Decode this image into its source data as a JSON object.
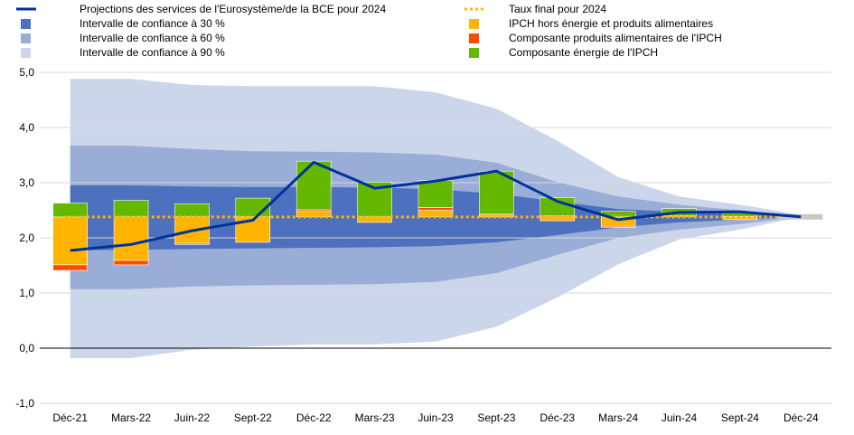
{
  "chart_data": {
    "type": "bar",
    "title": "",
    "xlabel": "",
    "ylabel": "",
    "ylim": [
      -1.0,
      5.0
    ],
    "yticks": [
      "-1,0",
      "0,0",
      "1,0",
      "2,0",
      "3,0",
      "4,0",
      "5,0"
    ],
    "grid": true,
    "legend_position": "top",
    "categories": [
      "Déc-21",
      "Mars-22",
      "Juin-22",
      "Sept-22",
      "Déc-22",
      "Mars-23",
      "Juin-23",
      "Sept-23",
      "Déc-23",
      "Mars-24",
      "Juin-24",
      "Sept-24",
      "Déc-24"
    ],
    "projection_line": {
      "name": "Projections des services de l'Eurosystème/de la BCE pour 2024",
      "color": "#003299",
      "values": [
        1.77,
        1.88,
        2.13,
        2.32,
        3.37,
        2.9,
        3.03,
        3.21,
        2.66,
        2.33,
        2.46,
        2.47,
        2.38
      ]
    },
    "final_rate": {
      "name": "Taux final pour 2024",
      "color": "#FFB400",
      "value": 2.38
    },
    "confidence_bands": [
      {
        "name": "Intervalle de confiance à 90 %",
        "color": "#CCD6EB",
        "upper": [
          4.88,
          4.88,
          4.77,
          4.75,
          4.75,
          4.75,
          4.64,
          4.34,
          3.76,
          3.1,
          2.75,
          2.6,
          2.42
        ],
        "lower": [
          -0.18,
          -0.18,
          -0.03,
          0.03,
          0.07,
          0.07,
          0.12,
          0.39,
          0.92,
          1.52,
          1.97,
          2.15,
          2.38
        ]
      },
      {
        "name": "Intervalle de confiance à 60 %",
        "color": "#99ADD6",
        "upper": [
          3.67,
          3.67,
          3.61,
          3.57,
          3.56,
          3.55,
          3.51,
          3.36,
          3.01,
          2.75,
          2.6,
          2.5,
          2.4
        ],
        "lower": [
          1.07,
          1.07,
          1.12,
          1.14,
          1.15,
          1.16,
          1.2,
          1.36,
          1.69,
          2.0,
          2.15,
          2.25,
          2.38
        ]
      },
      {
        "name": "Intervalle de confiance à 30 %",
        "color": "#4D70BF",
        "upper": [
          2.95,
          2.95,
          2.93,
          2.92,
          2.92,
          2.91,
          2.88,
          2.8,
          2.66,
          2.52,
          2.47,
          2.44,
          2.4
        ],
        "lower": [
          1.78,
          1.78,
          1.8,
          1.81,
          1.82,
          1.83,
          1.85,
          1.92,
          2.05,
          2.19,
          2.28,
          2.33,
          2.38
        ]
      }
    ],
    "error_components": {
      "baseline": 2.38,
      "series": [
        {
          "name": "IPCH hors énergie et produits alimentaires",
          "color": "#FFB400",
          "values": [
            -0.87,
            -0.79,
            -0.48,
            -0.46,
            0.1,
            -0.1,
            0.12,
            0.05,
            -0.07,
            -0.17,
            0.0,
            -0.05,
            -0.03
          ]
        },
        {
          "name": "Composante produits alimentaires de l'IPCH",
          "color": "#FF4B00",
          "values": [
            -0.1,
            -0.08,
            -0.02,
            0.0,
            0.03,
            0.0,
            0.05,
            0.0,
            0.02,
            -0.02,
            0.02,
            0.01,
            0.0
          ]
        },
        {
          "name": "Composante énergie de l'IPCH",
          "color": "#65B800",
          "values": [
            0.25,
            0.3,
            0.24,
            0.34,
            0.88,
            0.63,
            0.49,
            0.78,
            0.33,
            0.1,
            0.13,
            0.06,
            0.03
          ]
        }
      ]
    },
    "legend": [
      {
        "key": "line",
        "label": "Projections des services de l'Eurosystème/de la BCE pour 2024",
        "color": "#003299"
      },
      {
        "key": "band30",
        "label": "Intervalle de confiance à 30 %",
        "color": "#4D70BF"
      },
      {
        "key": "band60",
        "label": "Intervalle de confiance à 60 %",
        "color": "#99ADD6"
      },
      {
        "key": "band90",
        "label": "Intervalle de confiance à 90 %",
        "color": "#CCD6EB"
      },
      {
        "key": "dotted",
        "label": "Taux final pour 2024",
        "color": "#FFB400"
      },
      {
        "key": "core",
        "label": "IPCH hors énergie et produits alimentaires",
        "color": "#FFB400"
      },
      {
        "key": "food",
        "label": "Composante produits alimentaires de l'IPCH",
        "color": "#FF4B00"
      },
      {
        "key": "energy",
        "label": "Composante énergie de l'IPCH",
        "color": "#65B800"
      }
    ]
  }
}
